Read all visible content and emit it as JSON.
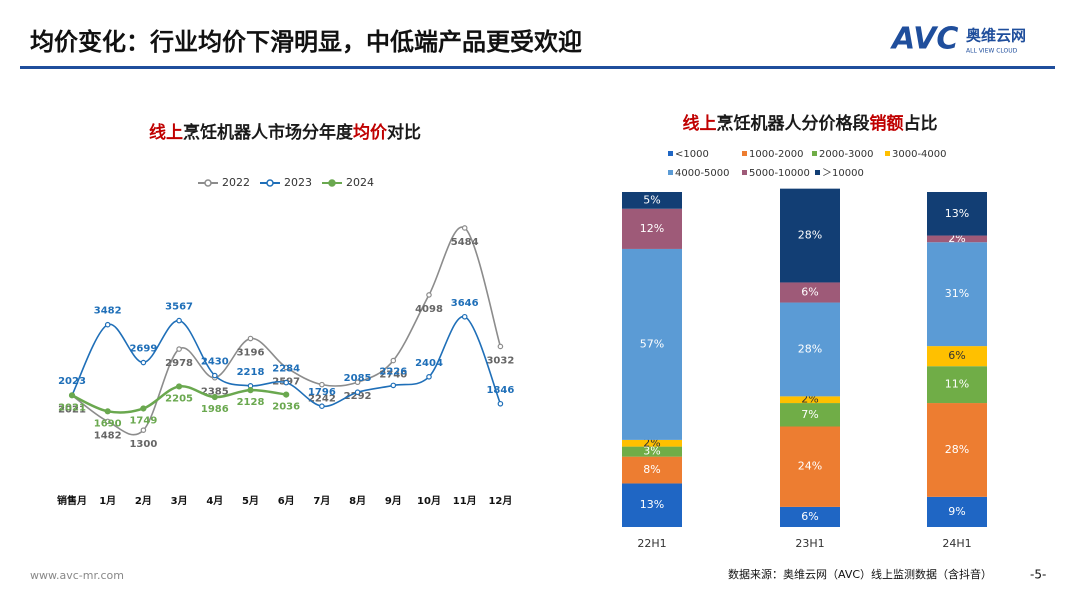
{
  "header": {
    "title": "均价变化：行业均价下滑明显，中低端产品更受欢迎",
    "logo": "AVC",
    "logo_cn": "奥维云网",
    "logo_en": "ALL VIEW CLOUD"
  },
  "chart_data": [
    {
      "type": "line",
      "title_parts": [
        "线上",
        "烹饪机器人市场分年度",
        "均价",
        "对比"
      ],
      "title_colors": [
        "#c00000",
        "#1a1a1a",
        "#c00000",
        "#1a1a1a"
      ],
      "categories": [
        "销售月",
        "1月",
        "2月",
        "3月",
        "4月",
        "5月",
        "6月",
        "7月",
        "8月",
        "9月",
        "10月",
        "11月",
        "12月"
      ],
      "series": [
        {
          "name": "2022",
          "color": "#8c8c8c",
          "values": [
            2021,
            1482,
            1300,
            2978,
            2385,
            3196,
            2597,
            2242,
            2292,
            2740,
            4098,
            5484,
            3032
          ]
        },
        {
          "name": "2023",
          "color": "#1f6fb8",
          "values": [
            2023,
            3482,
            2699,
            3567,
            2430,
            2218,
            2284,
            1796,
            2085,
            2226,
            2404,
            3646,
            1846
          ]
        },
        {
          "name": "2024",
          "color": "#6aa84f",
          "values": [
            2021,
            1690,
            1749,
            2205,
            1986,
            2128,
            2036,
            null,
            null,
            null,
            null,
            null,
            null
          ]
        }
      ],
      "ylim": [
        0,
        6000
      ],
      "legend": "top"
    },
    {
      "type": "stacked_bar",
      "title_parts": [
        "线上",
        "烹饪机器人分价格段",
        "销额",
        "占比"
      ],
      "title_colors": [
        "#c00000",
        "#1a1a1a",
        "#c00000",
        "#1a1a1a"
      ],
      "categories": [
        "22H1",
        "23H1",
        "24H1"
      ],
      "series": [
        {
          "name": "<1000",
          "color": "#1f66c4",
          "values": [
            13,
            6,
            9
          ],
          "value_labels": [
            "13%",
            "6%",
            "9%"
          ]
        },
        {
          "name": "1000-2000",
          "color": "#ed7d31",
          "values": [
            8,
            24,
            28
          ],
          "value_labels": [
            "8%",
            "24%",
            "28%"
          ]
        },
        {
          "name": "2000-3000",
          "color": "#70ad47",
          "values": [
            3,
            7,
            11
          ],
          "value_labels": [
            "3%",
            "7%",
            "11%"
          ]
        },
        {
          "name": "3000-4000",
          "color": "#ffc000",
          "values": [
            2,
            2,
            6
          ],
          "value_labels": [
            "2%",
            "2%",
            "6%"
          ]
        },
        {
          "name": "4000-5000",
          "color": "#5b9bd5",
          "values": [
            57,
            28,
            31
          ],
          "value_labels": [
            "57%",
            "28%",
            "31%"
          ]
        },
        {
          "name": "5000-10000",
          "color": "#9e5a78",
          "values": [
            12,
            6,
            2
          ],
          "value_labels": [
            "12%",
            "6%",
            "2%"
          ]
        },
        {
          "name": "＞10000",
          "color": "#123e74",
          "values": [
            5,
            28,
            13
          ],
          "value_labels": [
            "5%",
            "28%",
            "13%"
          ]
        }
      ],
      "ylim": [
        0,
        100
      ],
      "legend": "top"
    }
  ],
  "footer": {
    "url": "www.avc-mr.com",
    "source": "数据来源：奥维云网（AVC）线上监测数据（含抖音）",
    "page": "-5-"
  }
}
